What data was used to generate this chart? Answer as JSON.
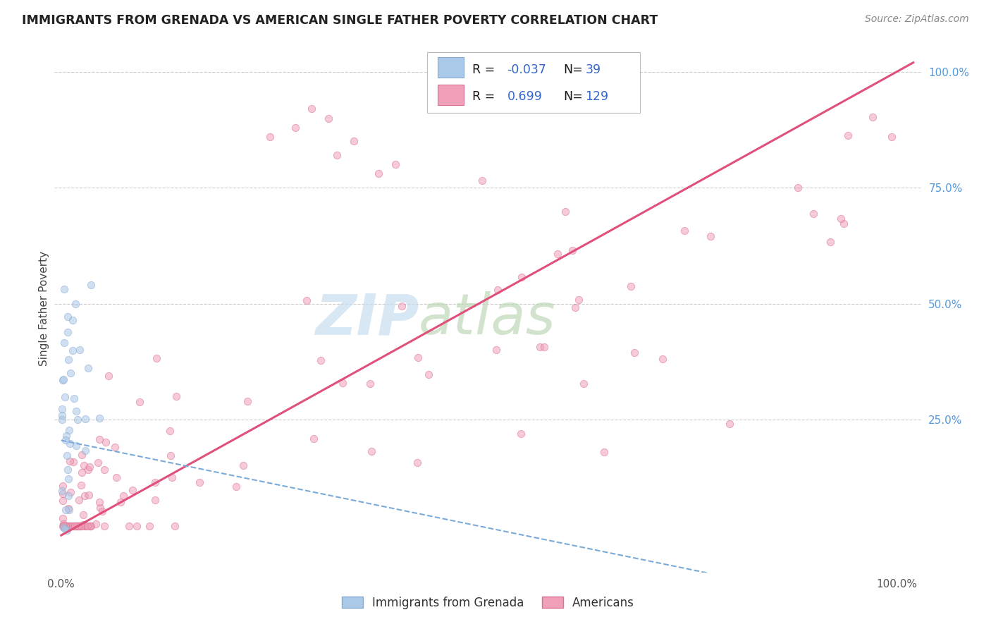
{
  "title": "IMMIGRANTS FROM GRENADA VS AMERICAN SINGLE FATHER POVERTY CORRELATION CHART",
  "source": "Source: ZipAtlas.com",
  "ylabel": "Single Father Poverty",
  "background_color": "#ffffff",
  "grid_color": "#cccccc",
  "scatter_alpha": 0.55,
  "scatter_size": 55,
  "blue_color": "#aac8e8",
  "blue_edge": "#88aad0",
  "pink_color": "#f0a0b8",
  "pink_edge": "#d87090",
  "pink_line_color": "#e0507a",
  "blue_line_color": "#7aaad8",
  "right_label_color": "#5599dd",
  "legend_text_color": "#1a1a1a",
  "legend_value_color": "#3366cc",
  "watermark_zip_color": "#c8ddf0",
  "watermark_atlas_color": "#c0d8b8"
}
